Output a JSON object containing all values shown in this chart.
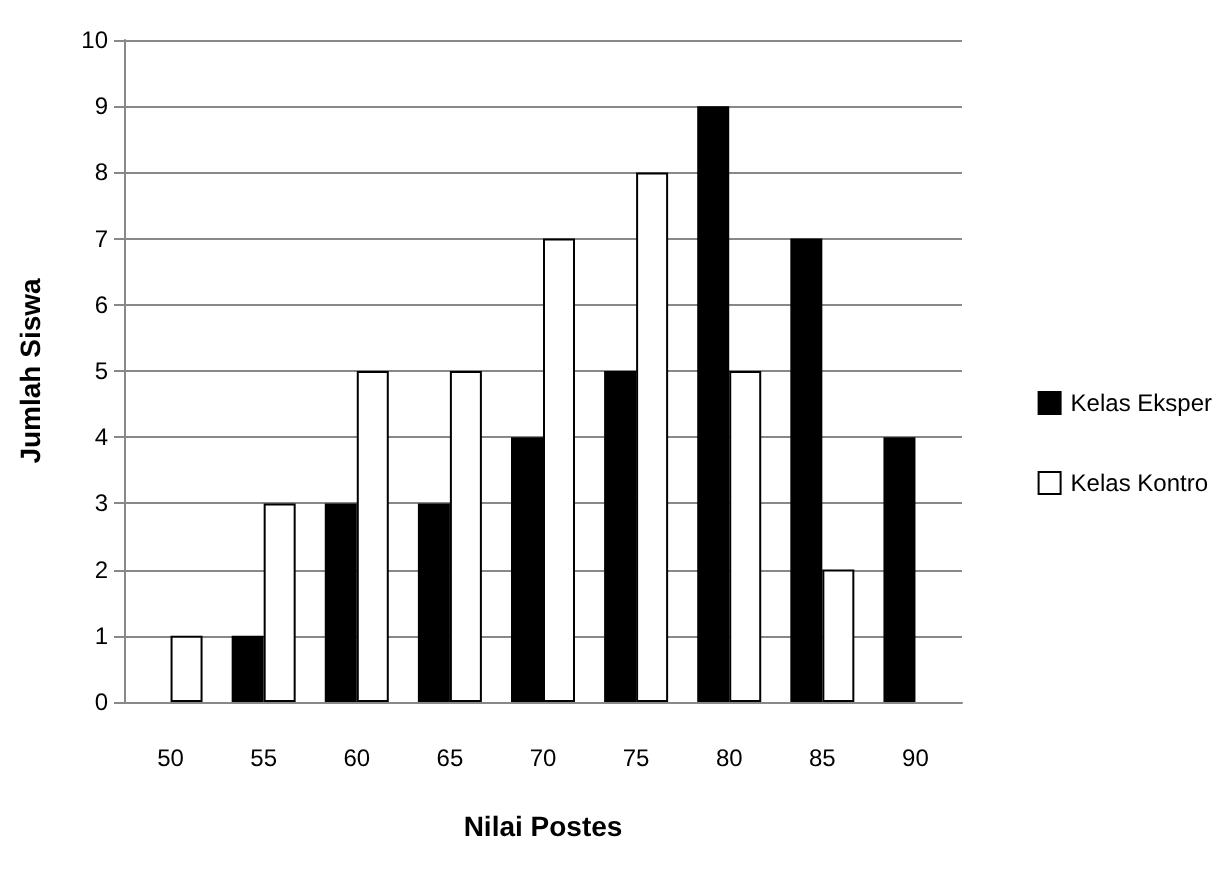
{
  "chart_data": {
    "type": "bar",
    "xlabel": "Nilai Postes",
    "ylabel": "Jumlah Siswa",
    "categories": [
      "50",
      "55",
      "60",
      "65",
      "70",
      "75",
      "80",
      "85",
      "90"
    ],
    "series": [
      {
        "name": "Kelas Eksper",
        "color": "#000000",
        "values": [
          0,
          1,
          3,
          3,
          4,
          5,
          9,
          7,
          4
        ]
      },
      {
        "name": "Kelas Kontro",
        "color": "#ffffff",
        "values": [
          1,
          3,
          5,
          5,
          7,
          8,
          5,
          2,
          0
        ]
      }
    ],
    "ylim": [
      0,
      10
    ],
    "yticks": [
      0,
      1,
      2,
      3,
      4,
      5,
      6,
      7,
      8,
      9,
      10
    ],
    "grid": "y",
    "legend": "right"
  }
}
